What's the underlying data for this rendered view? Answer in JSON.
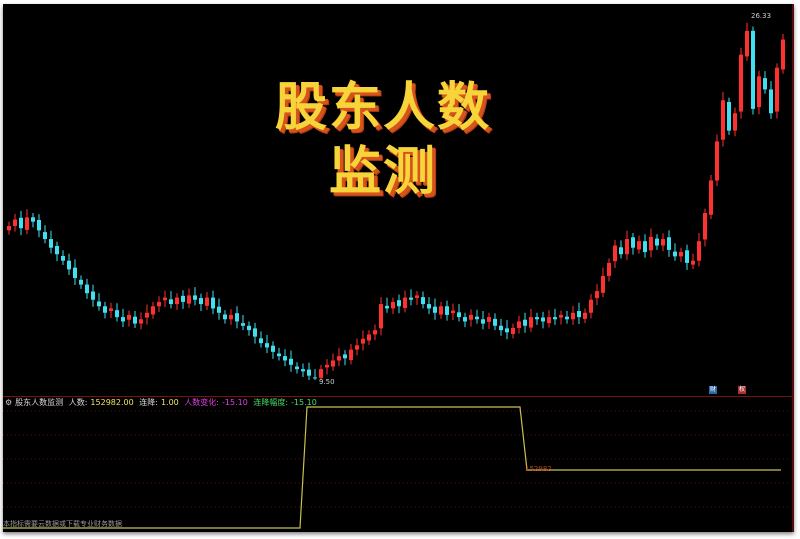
{
  "overlay_title": {
    "line1": "股东人数",
    "line2": "监测"
  },
  "indicator_legend": {
    "name": "股东人数监测",
    "holders_label": "人数:",
    "holders_value": "152982.00",
    "consecutive_label": "连降:",
    "consecutive_value": "1.00",
    "change_label": "人数变化:",
    "change_value": "-15.10",
    "drop_label": "连降幅度:",
    "drop_value": "-15.10"
  },
  "price_labels": {
    "high": "26.33",
    "low": "9.50"
  },
  "badges": {
    "finance": "财",
    "rights": "权"
  },
  "indicator_last_value": "152982",
  "bottom_note": "本指标需要云数据或下载专业财务数据",
  "colors": {
    "up": "#ff3030",
    "down": "#40e0f0",
    "indicator_line": "#c8c050",
    "title": "#f7d43a"
  },
  "chart_data": {
    "type": "candlestick",
    "price_range": [
      9.5,
      26.33
    ],
    "closes": [
      16.6,
      16.9,
      16.5,
      17.0,
      16.8,
      16.4,
      16.0,
      15.6,
      15.3,
      15.0,
      14.6,
      14.2,
      13.9,
      13.5,
      13.2,
      12.9,
      12.6,
      12.8,
      12.4,
      12.2,
      12.5,
      12.1,
      12.3,
      12.6,
      12.9,
      13.1,
      13.3,
      13.0,
      13.3,
      13.1,
      13.4,
      13.2,
      13.0,
      13.3,
      12.8,
      12.6,
      12.3,
      12.5,
      12.2,
      12.0,
      11.8,
      11.5,
      11.2,
      11.0,
      10.8,
      10.6,
      10.4,
      10.2,
      10.0,
      9.9,
      9.7,
      9.6,
      10.0,
      10.2,
      10.4,
      10.6,
      10.5,
      10.9,
      11.1,
      11.4,
      11.6,
      11.8,
      13.0,
      12.8,
      13.1,
      12.9,
      13.3,
      13.2,
      13.4,
      13.0,
      12.8,
      12.6,
      12.9,
      12.5,
      12.7,
      12.4,
      12.2,
      12.5,
      12.3,
      12.1,
      12.4,
      12.0,
      11.8,
      11.7,
      11.9,
      12.2,
      12.0,
      12.4,
      12.3,
      12.2,
      12.4,
      12.3,
      12.5,
      12.3,
      12.6,
      12.4,
      12.6,
      13.2,
      13.6,
      14.3,
      14.9,
      15.7,
      15.3,
      16.0,
      15.6,
      15.9,
      15.4,
      16.1,
      15.7,
      16.0,
      15.5,
      15.2,
      15.4,
      14.9,
      15.0,
      15.9,
      17.2,
      18.7,
      20.5,
      22.4,
      21.0,
      21.8,
      24.5,
      25.6,
      22.0,
      23.5,
      22.9,
      21.8,
      23.9,
      25.2
    ]
  }
}
